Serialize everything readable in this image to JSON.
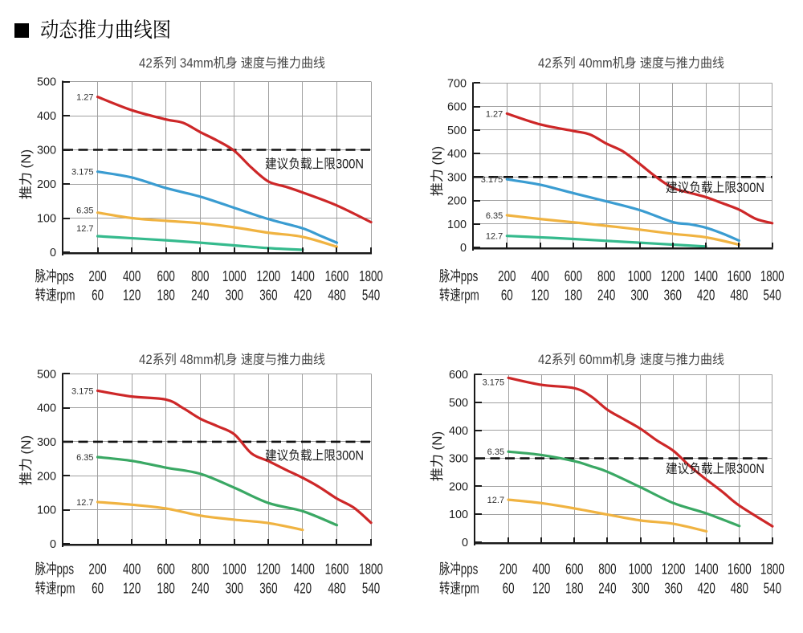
{
  "header": {
    "bullet_icon": "black-square-icon",
    "title": "动态推力曲线图"
  },
  "chart_data": [
    {
      "type": "line",
      "title": "42系列 34mm机身 速度与推力曲线",
      "ylabel": "推力 (N)",
      "ylim": [
        0,
        500
      ],
      "ytick_step": 100,
      "grid": true,
      "x_axis": {
        "pulse_label": "脉冲pps",
        "pulse_values": [
          200,
          400,
          600,
          800,
          1000,
          1200,
          1400,
          1600,
          1800
        ],
        "speed_label": "转速rpm",
        "speed_values": [
          60,
          120,
          180,
          240,
          300,
          360,
          420,
          480,
          540
        ]
      },
      "limit_line": {
        "value": 300,
        "label": "建议负载上限300N",
        "style": "dashed-black"
      },
      "series": [
        {
          "name": "1.27",
          "color": "#cd2728",
          "points": [
            [
              200,
              455
            ],
            [
              400,
              416
            ],
            [
              600,
              389
            ],
            [
              700,
              379
            ],
            [
              800,
              352
            ],
            [
              900,
              327
            ],
            [
              1000,
              297
            ],
            [
              1100,
              248
            ],
            [
              1200,
              207
            ],
            [
              1300,
              192
            ],
            [
              1400,
              175
            ],
            [
              1600,
              137
            ],
            [
              1800,
              88
            ]
          ]
        },
        {
          "name": "3.175",
          "color": "#3a9cd1",
          "points": [
            [
              200,
              236
            ],
            [
              400,
              219
            ],
            [
              600,
              188
            ],
            [
              800,
              163
            ],
            [
              1000,
              130
            ],
            [
              1200,
              97
            ],
            [
              1400,
              70
            ],
            [
              1500,
              49
            ],
            [
              1600,
              28
            ]
          ]
        },
        {
          "name": "6.35",
          "color": "#f0b341",
          "points": [
            [
              200,
              116
            ],
            [
              400,
              100
            ],
            [
              600,
              92
            ],
            [
              800,
              85
            ],
            [
              1000,
              73
            ],
            [
              1200,
              57
            ],
            [
              1400,
              45
            ],
            [
              1600,
              16
            ]
          ]
        },
        {
          "name": "12.7",
          "color": "#35ba8d",
          "points": [
            [
              200,
              47
            ],
            [
              400,
              41
            ],
            [
              600,
              35
            ],
            [
              800,
              28
            ],
            [
              1000,
              20
            ],
            [
              1200,
              12
            ],
            [
              1400,
              7
            ]
          ]
        }
      ]
    },
    {
      "type": "line",
      "title": "42系列 40mm机身 速度与推力曲线",
      "ylabel": "推力 (N)",
      "ylim": [
        0,
        700
      ],
      "ytick_step": 100,
      "grid": true,
      "x_axis": {
        "pulse_label": "脉冲pps",
        "pulse_values": [
          200,
          400,
          600,
          800,
          1000,
          1200,
          1400,
          1600,
          1800
        ],
        "speed_label": "转速rpm",
        "speed_values": [
          60,
          120,
          180,
          240,
          300,
          360,
          420,
          480,
          540
        ]
      },
      "limit_line": {
        "value": 300,
        "label": "建议负载上限300N",
        "style": "dashed-black"
      },
      "series": [
        {
          "name": "1.27",
          "color": "#cd2728",
          "points": [
            [
              200,
              570
            ],
            [
              400,
              524
            ],
            [
              600,
              496
            ],
            [
              700,
              481
            ],
            [
              800,
              442
            ],
            [
              900,
              409
            ],
            [
              1000,
              356
            ],
            [
              1100,
              300
            ],
            [
              1200,
              254
            ],
            [
              1300,
              233
            ],
            [
              1400,
              214
            ],
            [
              1500,
              188
            ],
            [
              1600,
              161
            ],
            [
              1700,
              122
            ],
            [
              1800,
              103
            ]
          ]
        },
        {
          "name": "3.175",
          "color": "#3a9cd1",
          "points": [
            [
              200,
              290
            ],
            [
              400,
              267
            ],
            [
              600,
              231
            ],
            [
              800,
              196
            ],
            [
              1000,
              159
            ],
            [
              1200,
              108
            ],
            [
              1300,
              99
            ],
            [
              1400,
              84
            ],
            [
              1500,
              59
            ],
            [
              1600,
              29
            ]
          ]
        },
        {
          "name": "6.35",
          "color": "#f0b341",
          "points": [
            [
              200,
              137
            ],
            [
              400,
              121
            ],
            [
              600,
              107
            ],
            [
              800,
              92
            ],
            [
              1000,
              76
            ],
            [
              1200,
              58
            ],
            [
              1400,
              43
            ],
            [
              1600,
              12
            ]
          ]
        },
        {
          "name": "12.7",
          "color": "#35ba8d",
          "points": [
            [
              200,
              49
            ],
            [
              400,
              43
            ],
            [
              600,
              36
            ],
            [
              800,
              28
            ],
            [
              1000,
              20
            ],
            [
              1200,
              12
            ],
            [
              1400,
              4
            ]
          ]
        }
      ]
    },
    {
      "type": "line",
      "title": "42系列 48mm机身 速度与推力曲线",
      "ylabel": "推力 (N)",
      "ylim": [
        0,
        500
      ],
      "ytick_step": 100,
      "grid": true,
      "x_axis": {
        "pulse_label": "脉冲pps",
        "pulse_values": [
          200,
          400,
          600,
          800,
          1000,
          1200,
          1400,
          1600,
          1800
        ],
        "speed_label": "转速rpm",
        "speed_values": [
          60,
          120,
          180,
          240,
          300,
          360,
          420,
          480,
          540
        ]
      },
      "limit_line": {
        "value": 300,
        "label": "建议负载上限300N",
        "style": "dashed-black"
      },
      "series": [
        {
          "name": "3.175",
          "color": "#cd2728",
          "points": [
            [
              200,
              450
            ],
            [
              400,
              433
            ],
            [
              600,
              424
            ],
            [
              700,
              399
            ],
            [
              800,
              368
            ],
            [
              900,
              346
            ],
            [
              1000,
              322
            ],
            [
              1100,
              266
            ],
            [
              1200,
              243
            ],
            [
              1300,
              218
            ],
            [
              1400,
              194
            ],
            [
              1500,
              166
            ],
            [
              1600,
              133
            ],
            [
              1700,
              106
            ],
            [
              1800,
              62
            ]
          ]
        },
        {
          "name": "6.35",
          "color": "#3aa864",
          "points": [
            [
              200,
              255
            ],
            [
              400,
              244
            ],
            [
              600,
              224
            ],
            [
              800,
              206
            ],
            [
              1000,
              165
            ],
            [
              1200,
              120
            ],
            [
              1400,
              96
            ],
            [
              1600,
              55
            ]
          ]
        },
        {
          "name": "12.7",
          "color": "#f0b341",
          "points": [
            [
              200,
              123
            ],
            [
              400,
              115
            ],
            [
              600,
              104
            ],
            [
              800,
              83
            ],
            [
              1000,
              71
            ],
            [
              1200,
              61
            ],
            [
              1400,
              41
            ]
          ]
        }
      ]
    },
    {
      "type": "line",
      "title": "42系列 60mm机身 速度与推力曲线",
      "ylabel": "推力 (N)",
      "ylim": [
        0,
        600
      ],
      "ytick_step": 100,
      "grid": true,
      "x_axis": {
        "pulse_label": "脉冲pps",
        "pulse_values": [
          200,
          400,
          600,
          800,
          1000,
          1200,
          1400,
          1600,
          1800
        ],
        "speed_label": "转速rpm",
        "speed_values": [
          60,
          120,
          180,
          240,
          300,
          360,
          420,
          480,
          540
        ]
      },
      "limit_line": {
        "value": 300,
        "label": "建议负载上限300N",
        "style": "dashed-black"
      },
      "series": [
        {
          "name": "3.175",
          "color": "#cd2728",
          "points": [
            [
              200,
              588
            ],
            [
              400,
              563
            ],
            [
              600,
              551
            ],
            [
              700,
              522
            ],
            [
              800,
              474
            ],
            [
              900,
              440
            ],
            [
              1000,
              406
            ],
            [
              1100,
              364
            ],
            [
              1200,
              327
            ],
            [
              1300,
              272
            ],
            [
              1400,
              224
            ],
            [
              1500,
              179
            ],
            [
              1600,
              131
            ],
            [
              1800,
              57
            ]
          ]
        },
        {
          "name": "6.35",
          "color": "#3aa864",
          "points": [
            [
              200,
              324
            ],
            [
              400,
              312
            ],
            [
              600,
              290
            ],
            [
              700,
              272
            ],
            [
              800,
              252
            ],
            [
              1000,
              197
            ],
            [
              1200,
              140
            ],
            [
              1400,
              103
            ],
            [
              1600,
              58
            ]
          ]
        },
        {
          "name": "12.7",
          "color": "#f0b341",
          "points": [
            [
              200,
              152
            ],
            [
              400,
              140
            ],
            [
              600,
              121
            ],
            [
              800,
              99
            ],
            [
              1000,
              78
            ],
            [
              1200,
              66
            ],
            [
              1400,
              39
            ]
          ]
        }
      ]
    }
  ],
  "style": {
    "grid_color": "#a0a0a0",
    "axis_color": "#1a1a1a",
    "text_color": "#1f1f1f",
    "limit_line_color": "#111111",
    "background": "#ffffff"
  }
}
